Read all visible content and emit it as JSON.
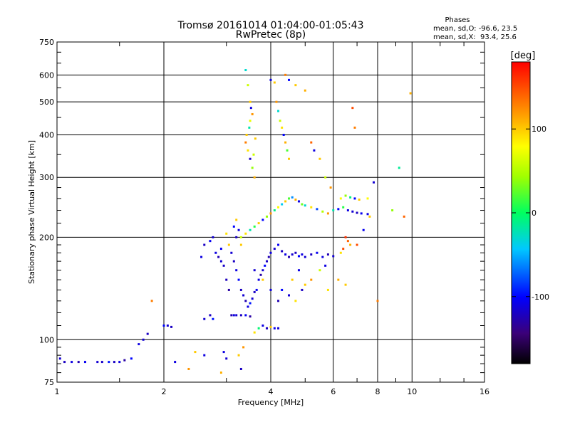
{
  "header": {
    "title": "Tromsø 20161014 01:04:00-01:05:43",
    "subtitle": "RwPretec (8p)"
  },
  "stats": {
    "heading": "Phases",
    "line_o": "mean, sd,O: -96.6, 23.5",
    "line_x": "mean, sd,X:  93.4, 25.6"
  },
  "colorbar": {
    "title": "[deg]",
    "min": -180,
    "max": 180,
    "ticks": [
      {
        "value": 100,
        "label": "100"
      },
      {
        "value": 0,
        "label": "0"
      },
      {
        "value": -100,
        "label": "-100"
      }
    ]
  },
  "chart_data": {
    "type": "scatter",
    "title": "Tromsø 20161014 01:04:00-01:05:43",
    "subtitle": "RwPretec (8p)",
    "xlabel": "Frequency [MHz]",
    "ylabel": "Stationary phase Virtual Height [km]",
    "xscale": "log",
    "yscale": "log",
    "xlim": [
      1,
      16
    ],
    "ylim": [
      75,
      750
    ],
    "grid": true,
    "x_ticks": [
      {
        "value": 1,
        "label": "1"
      },
      {
        "value": 2,
        "label": "2"
      },
      {
        "value": 4,
        "label": "4"
      },
      {
        "value": 6,
        "label": "6"
      },
      {
        "value": 8,
        "label": "8"
      },
      {
        "value": 10,
        "label": "10"
      },
      {
        "value": 16,
        "label": "16"
      }
    ],
    "x_gridlines": [
      2,
      4,
      6,
      8,
      10
    ],
    "y_ticks": [
      {
        "value": 75,
        "label": "75"
      },
      {
        "value": 100,
        "label": "100"
      },
      {
        "value": 200,
        "label": "200"
      },
      {
        "value": 300,
        "label": "300"
      },
      {
        "value": 400,
        "label": "400"
      },
      {
        "value": 500,
        "label": "500"
      },
      {
        "value": 600,
        "label": "600"
      },
      {
        "value": 750,
        "label": "750"
      }
    ],
    "y_gridlines": [
      100,
      200,
      300,
      400,
      500,
      600
    ],
    "color_by": "phase [deg]",
    "points": [
      [
        1.02,
        88,
        -115
      ],
      [
        1.05,
        86,
        -120
      ],
      [
        1.1,
        86,
        -110
      ],
      [
        1.15,
        86,
        -125
      ],
      [
        1.2,
        86,
        -105
      ],
      [
        1.3,
        86,
        -115
      ],
      [
        1.45,
        86,
        -120
      ],
      [
        1.5,
        86,
        -110
      ],
      [
        1.55,
        87,
        -130
      ],
      [
        1.62,
        88,
        -100
      ],
      [
        1.4,
        86,
        -95
      ],
      [
        1.34,
        86,
        -118
      ],
      [
        1.7,
        97,
        -110
      ],
      [
        1.75,
        100,
        -115
      ],
      [
        1.8,
        104,
        -120
      ],
      [
        2.0,
        110,
        -100
      ],
      [
        2.05,
        110,
        -115
      ],
      [
        2.1,
        109,
        -120
      ],
      [
        2.15,
        86,
        -110
      ],
      [
        2.35,
        82,
        120
      ],
      [
        2.6,
        115,
        -115
      ],
      [
        2.7,
        118,
        -120
      ],
      [
        2.75,
        115,
        -95
      ],
      [
        2.8,
        180,
        -110
      ],
      [
        2.85,
        175,
        -125
      ],
      [
        2.9,
        185,
        -105
      ],
      [
        2.95,
        165,
        -118
      ],
      [
        3.0,
        150,
        -122
      ],
      [
        3.05,
        140,
        -130
      ],
      [
        3.1,
        118,
        -125
      ],
      [
        3.15,
        118,
        -110
      ],
      [
        3.2,
        118,
        -115
      ],
      [
        3.3,
        118,
        -120
      ],
      [
        3.4,
        118,
        -105
      ],
      [
        3.5,
        117,
        -130
      ],
      [
        3.05,
        190,
        100
      ],
      [
        3.1,
        180,
        -115
      ],
      [
        3.15,
        170,
        -120
      ],
      [
        3.2,
        160,
        -110
      ],
      [
        3.25,
        150,
        -100
      ],
      [
        3.3,
        140,
        -120
      ],
      [
        3.35,
        135,
        -115
      ],
      [
        3.4,
        130,
        -125
      ],
      [
        3.45,
        125,
        -110
      ],
      [
        3.5,
        128,
        -95
      ],
      [
        3.55,
        132,
        -115
      ],
      [
        3.6,
        138,
        -120
      ],
      [
        3.65,
        140,
        -105
      ],
      [
        3.7,
        150,
        -110
      ],
      [
        3.75,
        155,
        -130
      ],
      [
        3.8,
        160,
        -115
      ],
      [
        3.85,
        165,
        -100
      ],
      [
        3.9,
        170,
        -120
      ],
      [
        3.95,
        175,
        -125
      ],
      [
        4.0,
        180,
        -110
      ],
      [
        4.1,
        185,
        -115
      ],
      [
        4.2,
        190,
        -105
      ],
      [
        4.3,
        182,
        -120
      ],
      [
        4.4,
        178,
        -110
      ],
      [
        4.5,
        175,
        -125
      ],
      [
        4.6,
        178,
        -115
      ],
      [
        4.7,
        180,
        -120
      ],
      [
        4.8,
        176,
        -100
      ],
      [
        4.9,
        178,
        -110
      ],
      [
        5.0,
        175,
        -115
      ],
      [
        5.2,
        178,
        -120
      ],
      [
        5.4,
        180,
        -105
      ],
      [
        5.6,
        175,
        -110
      ],
      [
        5.8,
        178,
        -125
      ],
      [
        6.0,
        176,
        -115
      ],
      [
        3.3,
        200,
        60
      ],
      [
        3.4,
        205,
        90
      ],
      [
        3.5,
        210,
        -20
      ],
      [
        3.6,
        215,
        10
      ],
      [
        3.7,
        220,
        100
      ],
      [
        3.8,
        225,
        -100
      ],
      [
        3.9,
        230,
        40
      ],
      [
        4.0,
        235,
        120
      ],
      [
        4.1,
        240,
        -10
      ],
      [
        4.2,
        245,
        80
      ],
      [
        4.3,
        250,
        -40
      ],
      [
        4.4,
        255,
        100
      ],
      [
        4.5,
        260,
        20
      ],
      [
        4.6,
        262,
        -60
      ],
      [
        4.7,
        258,
        110
      ],
      [
        4.8,
        255,
        -110
      ],
      [
        4.9,
        250,
        30
      ],
      [
        5.0,
        248,
        -30
      ],
      [
        5.2,
        245,
        90
      ],
      [
        5.4,
        242,
        -80
      ],
      [
        5.6,
        238,
        50
      ],
      [
        5.8,
        235,
        120
      ],
      [
        6.0,
        240,
        -20
      ],
      [
        6.2,
        242,
        -100
      ],
      [
        6.4,
        245,
        10
      ],
      [
        6.6,
        240,
        -110
      ],
      [
        6.8,
        238,
        -115
      ],
      [
        7.0,
        236,
        -120
      ],
      [
        7.2,
        235,
        -105
      ],
      [
        7.5,
        234,
        -110
      ],
      [
        6.3,
        260,
        80
      ],
      [
        6.5,
        265,
        40
      ],
      [
        6.7,
        262,
        -10
      ],
      [
        6.9,
        260,
        -100
      ],
      [
        7.1,
        258,
        100
      ],
      [
        6.5,
        200,
        160
      ],
      [
        6.6,
        195,
        140
      ],
      [
        6.7,
        190,
        110
      ],
      [
        6.4,
        185,
        150
      ],
      [
        6.3,
        180,
        90
      ],
      [
        3.4,
        620,
        -30
      ],
      [
        3.45,
        560,
        60
      ],
      [
        3.5,
        500,
        100
      ],
      [
        3.52,
        480,
        -110
      ],
      [
        3.55,
        460,
        120
      ],
      [
        3.5,
        440,
        70
      ],
      [
        3.48,
        420,
        -20
      ],
      [
        3.42,
        400,
        100
      ],
      [
        3.4,
        380,
        130
      ],
      [
        3.45,
        360,
        90
      ],
      [
        3.5,
        340,
        -120
      ],
      [
        3.55,
        320,
        40
      ],
      [
        3.6,
        300,
        110
      ],
      [
        3.58,
        350,
        60
      ],
      [
        3.62,
        390,
        100
      ],
      [
        4.0,
        580,
        -110
      ],
      [
        4.1,
        570,
        100
      ],
      [
        4.15,
        500,
        120
      ],
      [
        4.2,
        470,
        -30
      ],
      [
        4.25,
        440,
        60
      ],
      [
        4.3,
        420,
        90
      ],
      [
        4.35,
        400,
        -100
      ],
      [
        4.4,
        380,
        110
      ],
      [
        4.45,
        360,
        20
      ],
      [
        4.5,
        340,
        100
      ],
      [
        4.4,
        600,
        130
      ],
      [
        4.5,
        580,
        -100
      ],
      [
        4.7,
        560,
        100
      ],
      [
        5.0,
        540,
        110
      ],
      [
        5.2,
        380,
        140
      ],
      [
        5.3,
        360,
        -110
      ],
      [
        5.5,
        340,
        100
      ],
      [
        5.7,
        300,
        60
      ],
      [
        5.9,
        280,
        120
      ],
      [
        6.8,
        480,
        150
      ],
      [
        6.9,
        420,
        130
      ],
      [
        7.8,
        290,
        -115
      ],
      [
        8.8,
        240,
        40
      ],
      [
        9.2,
        320,
        -15
      ],
      [
        9.5,
        230,
        140
      ],
      [
        9.9,
        530,
        110
      ],
      [
        7.5,
        260,
        80
      ],
      [
        7.6,
        230,
        100
      ],
      [
        7.3,
        210,
        -105
      ],
      [
        7.0,
        190,
        150
      ],
      [
        3.7,
        108,
        -5
      ],
      [
        3.8,
        110,
        -110
      ],
      [
        3.9,
        108,
        -120
      ],
      [
        4.0,
        109,
        100
      ],
      [
        4.1,
        108,
        -105
      ],
      [
        4.2,
        108,
        -115
      ],
      [
        3.6,
        105,
        90
      ],
      [
        3.35,
        95,
        120
      ],
      [
        3.25,
        90,
        100
      ],
      [
        2.95,
        92,
        -110
      ],
      [
        3.3,
        82,
        -120
      ],
      [
        2.45,
        92,
        100
      ],
      [
        2.6,
        90,
        -110
      ],
      [
        2.9,
        80,
        110
      ],
      [
        3.0,
        88,
        -115
      ],
      [
        1.85,
        130,
        130
      ],
      [
        5.8,
        140,
        90
      ],
      [
        6.2,
        150,
        110
      ],
      [
        6.5,
        145,
        100
      ],
      [
        8.0,
        130,
        130
      ],
      [
        5.0,
        145,
        100
      ],
      [
        5.2,
        150,
        120
      ],
      [
        5.5,
        160,
        60
      ],
      [
        5.7,
        165,
        -110
      ],
      [
        4.6,
        150,
        100
      ],
      [
        4.8,
        160,
        -110
      ],
      [
        4.3,
        140,
        -100
      ],
      [
        4.5,
        135,
        -115
      ],
      [
        4.7,
        130,
        90
      ],
      [
        4.9,
        140,
        -120
      ],
      [
        3.6,
        160,
        -115
      ],
      [
        3.8,
        150,
        100
      ],
      [
        4.0,
        140,
        -110
      ],
      [
        4.2,
        130,
        -125
      ],
      [
        3.2,
        200,
        -120
      ],
      [
        3.25,
        210,
        -110
      ],
      [
        3.3,
        190,
        100
      ],
      [
        2.75,
        200,
        -115
      ],
      [
        2.7,
        195,
        -105
      ],
      [
        2.6,
        190,
        -120
      ],
      [
        2.55,
        175,
        -110
      ],
      [
        2.9,
        170,
        -115
      ],
      [
        3.0,
        205,
        90
      ],
      [
        3.15,
        215,
        -100
      ],
      [
        3.2,
        225,
        100
      ]
    ]
  }
}
